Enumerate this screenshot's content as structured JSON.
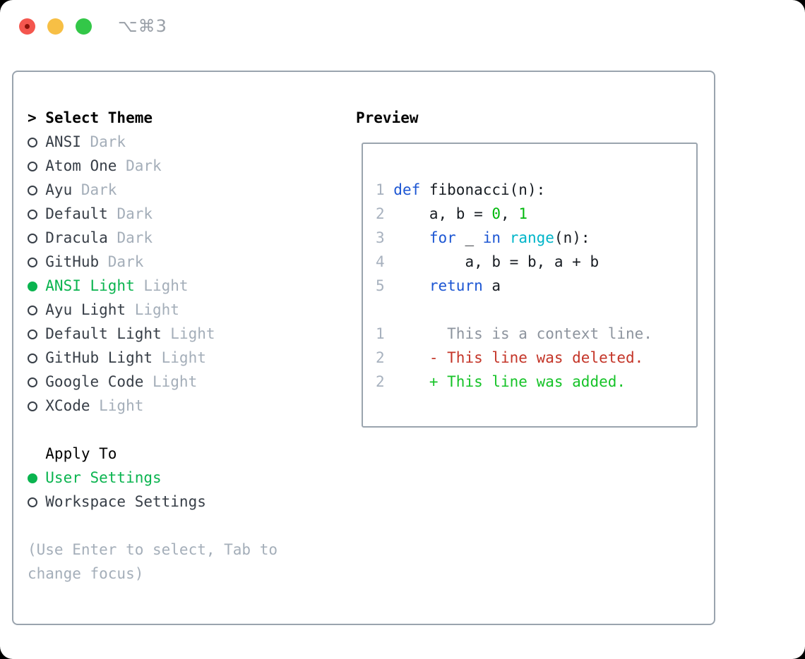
{
  "window": {
    "title": "⌥⌘3"
  },
  "colors": {
    "accent_green": "#0ab44f",
    "item_text": "#373e47",
    "muted_text": "#a4aeb9",
    "header_text": "#000000",
    "panel_border": "#9aa4ae",
    "title_text": "#9aa0a8",
    "traffic_red": "#f4564e",
    "traffic_red_dot": "#8c1209",
    "traffic_yellow": "#f7bf45",
    "traffic_green": "#33c748",
    "tokens": {
      "ln": "#a7b1be",
      "plain": "#181d23",
      "kw": "#1c56d3",
      "builtin": "#00b5c9",
      "num": "#00b80c",
      "ctx": "#8d949e",
      "del": "#c43528",
      "add": "#16c328"
    }
  },
  "theme_selector": {
    "prompt": ">",
    "header": "Select Theme",
    "items": [
      {
        "name": "ANSI",
        "variant": "Dark",
        "selected": false
      },
      {
        "name": "Atom One",
        "variant": "Dark",
        "selected": false
      },
      {
        "name": "Ayu",
        "variant": "Dark",
        "selected": false
      },
      {
        "name": "Default",
        "variant": "Dark",
        "selected": false
      },
      {
        "name": "Dracula",
        "variant": "Dark",
        "selected": false
      },
      {
        "name": "GitHub",
        "variant": "Dark",
        "selected": false
      },
      {
        "name": "ANSI Light",
        "variant": "Light",
        "selected": true
      },
      {
        "name": "Ayu Light",
        "variant": "Light",
        "selected": false
      },
      {
        "name": "Default Light",
        "variant": "Light",
        "selected": false
      },
      {
        "name": "GitHub Light",
        "variant": "Light",
        "selected": false
      },
      {
        "name": "Google Code",
        "variant": "Light",
        "selected": false
      },
      {
        "name": "XCode",
        "variant": "Light",
        "selected": false
      }
    ]
  },
  "apply_to": {
    "header": "Apply To",
    "options": [
      {
        "name": "User Settings",
        "selected": true
      },
      {
        "name": "Workspace Settings",
        "selected": false
      }
    ]
  },
  "hint": "(Use Enter to select, Tab to change focus)",
  "preview": {
    "header": "Preview",
    "lines": [
      [
        [
          "1 ",
          "ln"
        ],
        [
          "def",
          "kw"
        ],
        [
          " fibonacci(n):",
          "plain"
        ]
      ],
      [
        [
          "2 ",
          "ln"
        ],
        [
          "    a, b = ",
          "plain"
        ],
        [
          "0",
          "num"
        ],
        [
          ", ",
          "plain"
        ],
        [
          "1",
          "num"
        ]
      ],
      [
        [
          "3 ",
          "ln"
        ],
        [
          "    ",
          "plain"
        ],
        [
          "for",
          "kw"
        ],
        [
          " _ ",
          "plain"
        ],
        [
          "in",
          "kw"
        ],
        [
          " ",
          "plain"
        ],
        [
          "range",
          "builtin"
        ],
        [
          "(n):",
          "plain"
        ]
      ],
      [
        [
          "4 ",
          "ln"
        ],
        [
          "        a, b = b, a + b",
          "plain"
        ]
      ],
      [
        [
          "5 ",
          "ln"
        ],
        [
          "    ",
          "plain"
        ],
        [
          "return",
          "kw"
        ],
        [
          " a",
          "plain"
        ]
      ],
      [],
      [
        [
          "1 ",
          "ln"
        ],
        [
          "      This is a context line.",
          "ctx"
        ]
      ],
      [
        [
          "2 ",
          "ln"
        ],
        [
          "    - This line was deleted.",
          "del"
        ]
      ],
      [
        [
          "2 ",
          "ln"
        ],
        [
          "    + This line was added.",
          "add"
        ]
      ]
    ]
  }
}
